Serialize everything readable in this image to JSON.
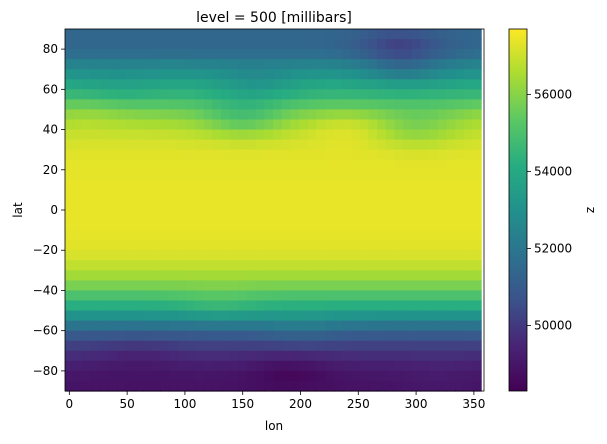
{
  "chart_data": {
    "type": "heatmap",
    "title": "level = 500 [millibars]",
    "xlabel": "lon",
    "ylabel": "lat",
    "colorbar_label": "z",
    "colormap": "viridis",
    "xlim": [
      -3.75,
      358.75
    ],
    "ylim": [
      -90,
      90
    ],
    "x_ticks": [
      0,
      50,
      100,
      150,
      200,
      250,
      300,
      350
    ],
    "y_ticks": [
      -80,
      -60,
      -40,
      -20,
      0,
      20,
      40,
      60,
      80
    ],
    "zlim": [
      48300,
      57700
    ],
    "colorbar_ticks": [
      50000,
      52000,
      54000,
      56000
    ],
    "grid": false,
    "lon_step": 7.5,
    "lat_step": 5,
    "lon_start": 0,
    "lat_start": 87.5,
    "lat_profile_note": "rows from north (87.5) to south (-87.5), approximate zonal mean z",
    "lat_profile": [
      51400,
      51400,
      51700,
      52500,
      53200,
      53900,
      54500,
      55200,
      55900,
      56500,
      56900,
      57150,
      57300,
      57350,
      57380,
      57400,
      57400,
      57400,
      57400,
      57400,
      57380,
      57300,
      57150,
      56850,
      56400,
      55800,
      55000,
      54200,
      53100,
      51900,
      50900,
      50200,
      49700,
      49300,
      49000,
      48900
    ],
    "anomalies": [
      {
        "lat": 82.5,
        "lon": 285,
        "dz": -1000
      },
      {
        "lat": 70,
        "lon": 290,
        "dz": -900
      },
      {
        "lat": 62,
        "lon": 160,
        "dz": -700
      },
      {
        "lat": 60,
        "lon": 40,
        "dz": -300
      },
      {
        "lat": 45,
        "lon": 150,
        "dz": -1100
      },
      {
        "lat": 40,
        "lon": 300,
        "dz": -800
      },
      {
        "lat": 42,
        "lon": 240,
        "dz": 500
      },
      {
        "lat": 50,
        "lon": 15,
        "dz": 400
      },
      {
        "lat": -48,
        "lon": 130,
        "dz": 400
      },
      {
        "lat": -60,
        "lon": 200,
        "dz": 350
      },
      {
        "lat": -72,
        "lon": 60,
        "dz": -300
      },
      {
        "lat": -80,
        "lon": 190,
        "dz": -500
      },
      {
        "lat": -85,
        "lon": 320,
        "dz": 200
      }
    ]
  }
}
